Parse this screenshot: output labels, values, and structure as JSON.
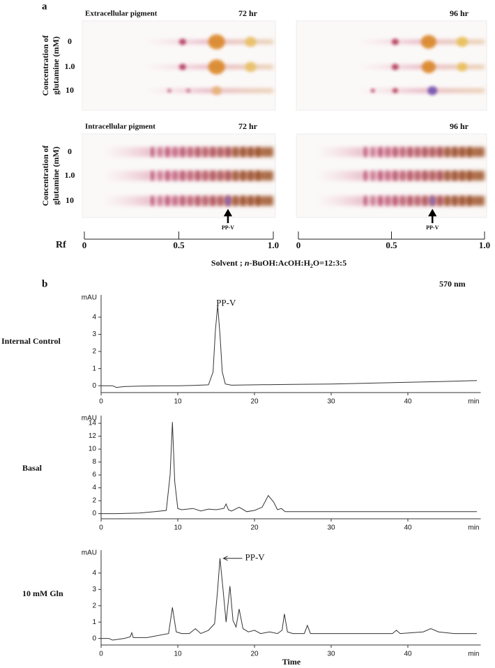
{
  "panel_a": {
    "label": "a",
    "y_axis_label_lines": [
      "Concentration of",
      "glutamine (mM)"
    ],
    "plates": [
      {
        "title": "Extracellular pigment",
        "times": [
          "72 hr",
          "96 hr"
        ]
      },
      {
        "title": "Intracellular pigment",
        "times": [
          "72 hr",
          "96 hr"
        ]
      }
    ],
    "concentrations": [
      "0",
      "1.0",
      "10"
    ],
    "rf_axis": {
      "label": "Rf",
      "lim": [
        0,
        1
      ],
      "ticks": [
        0,
        0.5,
        {
          "value": 1,
          "label": "1.0"
        }
      ]
    },
    "marker_label": "PP-V",
    "marker_rf": [
      0.76,
      0.72
    ],
    "solvent": [
      "Solvent ; ",
      "n",
      "-BuOH:AcOH:H",
      "2",
      "O=12:3:5"
    ]
  },
  "panel_b": {
    "label": "b",
    "annotation": "570 nm",
    "x_axis_title": "Time"
  },
  "chart_data": [
    {
      "type": "line",
      "title": "Internal Control",
      "y_label": "mAU",
      "x_unit_label": "min",
      "annotation": "PP-V",
      "color": "#333",
      "x": [
        0,
        1.5,
        2,
        3,
        5,
        8,
        10,
        12,
        14,
        14.6,
        14.9,
        15.2,
        15.5,
        15.8,
        16.2,
        17,
        20,
        25,
        30,
        35,
        40,
        45,
        49
      ],
      "values": [
        0,
        0,
        -0.1,
        -0.05,
        -0.02,
        0,
        0,
        0.02,
        0.05,
        0.8,
        3.2,
        4.7,
        3.0,
        0.8,
        0.1,
        0.03,
        0.05,
        0.08,
        0.1,
        0.15,
        0.2,
        0.25,
        0.3
      ],
      "xlim": [
        0,
        49.5
      ],
      "xticks": [
        0,
        10,
        20,
        30,
        40
      ],
      "ylim": [
        -0.4,
        5.3
      ],
      "yticks": [
        0,
        1,
        2,
        3,
        4
      ]
    },
    {
      "type": "line",
      "title": "Basal",
      "y_label": "mAU",
      "x_unit_label": "min",
      "color": "#333",
      "x": [
        0,
        2,
        5,
        7,
        8.5,
        9.0,
        9.3,
        9.6,
        10,
        10.5,
        12,
        13,
        14,
        15,
        16,
        16.3,
        16.6,
        17,
        18,
        19,
        20,
        21,
        21.8,
        22.5,
        23,
        23.5,
        24,
        26,
        30,
        35,
        40,
        45,
        49
      ],
      "values": [
        0,
        0,
        0.1,
        0.3,
        0.5,
        6,
        14.2,
        5,
        0.8,
        0.6,
        0.8,
        0.4,
        0.7,
        0.6,
        0.8,
        1.5,
        0.6,
        0.4,
        1.0,
        0.3,
        0.5,
        1.0,
        2.8,
        1.8,
        0.6,
        0.8,
        0.3,
        0.3,
        0.3,
        0.3,
        0.3,
        0.3,
        0.3
      ],
      "xlim": [
        0,
        49.5
      ],
      "xticks": [
        0,
        10,
        20,
        30,
        40
      ],
      "ylim": [
        -0.8,
        15.2
      ],
      "yticks": [
        0,
        2,
        4,
        6,
        8,
        10,
        12,
        14
      ]
    },
    {
      "type": "line",
      "title": "10 mM Gln",
      "y_label": "mAU",
      "x_unit_label": "min",
      "annotation": "PP-V",
      "color": "#333",
      "x": [
        0,
        1,
        1.5,
        3,
        3.8,
        4,
        4.2,
        6,
        8.8,
        9.3,
        9.8,
        10.5,
        11.5,
        12.3,
        13,
        14,
        14.8,
        15.2,
        15.5,
        15.9,
        16.3,
        16.8,
        17.2,
        17.6,
        18,
        18.5,
        19.2,
        20,
        20.8,
        22,
        23,
        23.6,
        23.9,
        24.3,
        25,
        26.5,
        26.9,
        27.3,
        30,
        35,
        38,
        38.5,
        39,
        42,
        43,
        44,
        46,
        49
      ],
      "values": [
        0,
        0,
        -0.1,
        0,
        0.1,
        0.35,
        0.05,
        0.05,
        0.3,
        1.9,
        0.4,
        0.3,
        0.3,
        0.6,
        0.3,
        0.5,
        0.9,
        3.0,
        4.9,
        3.0,
        1.0,
        3.2,
        1.1,
        0.7,
        1.8,
        0.6,
        0.4,
        0.5,
        0.3,
        0.4,
        0.3,
        0.5,
        1.5,
        0.4,
        0.3,
        0.3,
        0.8,
        0.3,
        0.3,
        0.3,
        0.3,
        0.5,
        0.3,
        0.4,
        0.6,
        0.4,
        0.3,
        0.3
      ],
      "xlim": [
        0,
        49.5
      ],
      "xticks": [
        0,
        10,
        20,
        30,
        40
      ],
      "ylim": [
        -0.4,
        5.4
      ],
      "yticks": [
        0,
        1,
        2,
        3,
        4
      ]
    }
  ]
}
